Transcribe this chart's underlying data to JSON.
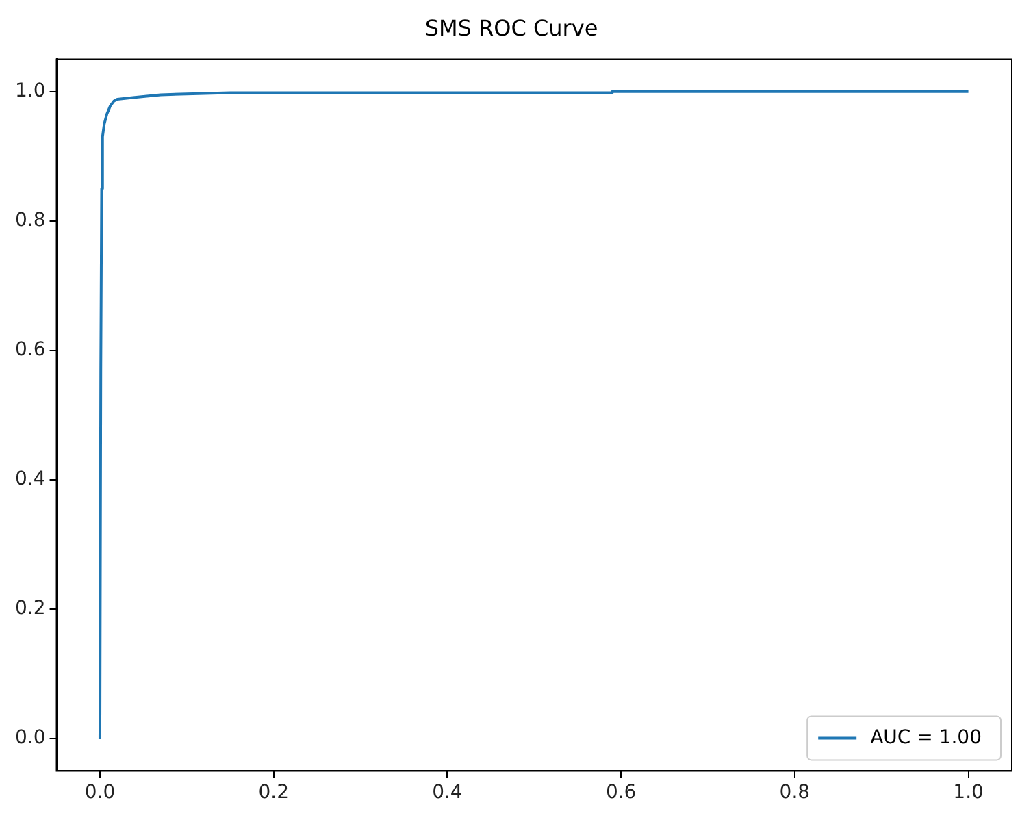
{
  "chart_data": {
    "type": "line",
    "title": "SMS ROC Curve",
    "series": [
      {
        "name": "AUC = 1.00",
        "color": "#1f77b4",
        "x": [
          0,
          0.001,
          0.002,
          0.003,
          0.005,
          0.008,
          0.012,
          0.016,
          0.02,
          0.04,
          0.07,
          0.15,
          0.59,
          0.59,
          1
        ],
        "values": [
          0,
          0.57,
          0.85,
          0.93,
          0.95,
          0.965,
          0.978,
          0.985,
          0.988,
          0.991,
          0.995,
          0.998,
          0.998,
          1,
          1
        ]
      }
    ],
    "xlim": [
      -0.05,
      1.05
    ],
    "ylim": [
      -0.05,
      1.05
    ],
    "xticks": [
      {
        "value": 0,
        "label": "0.0"
      },
      {
        "value": 0.2,
        "label": "0.2"
      },
      {
        "value": 0.4,
        "label": "0.4"
      },
      {
        "value": 0.6,
        "label": "0.6"
      },
      {
        "value": 0.8,
        "label": "0.8"
      },
      {
        "value": 1,
        "label": "1.0"
      }
    ],
    "yticks": [
      {
        "value": 0,
        "label": "0.0"
      },
      {
        "value": 0.2,
        "label": "0.2"
      },
      {
        "value": 0.4,
        "label": "0.4"
      },
      {
        "value": 0.6,
        "label": "0.6"
      },
      {
        "value": 0.8,
        "label": "0.8"
      },
      {
        "value": 1,
        "label": "1.0"
      }
    ],
    "grid": false,
    "legend": "bottom right",
    "marker": "none",
    "line_style": "solid"
  }
}
